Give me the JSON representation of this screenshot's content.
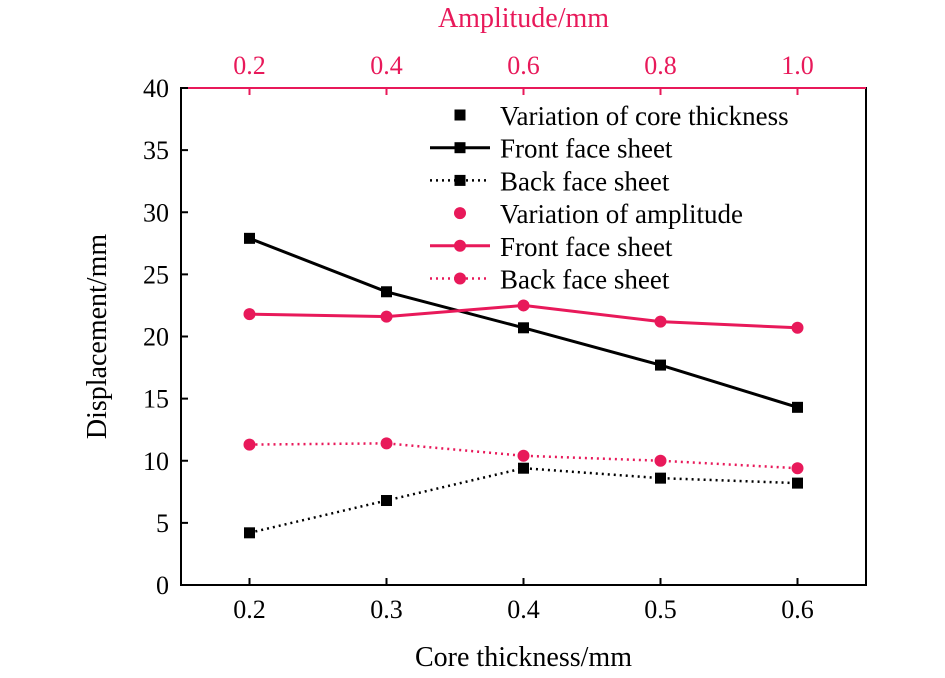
{
  "chart_data": {
    "type": "line",
    "xlabel": "Core thickness/mm",
    "x2label": "Amplitude/mm",
    "ylabel": "Displacement/mm",
    "x": [
      0.2,
      0.3,
      0.4,
      0.5,
      0.6
    ],
    "x_tick_labels": [
      "0.2",
      "0.3",
      "0.4",
      "0.5",
      "0.6"
    ],
    "x2": [
      0.2,
      0.4,
      0.6,
      0.8,
      1.0
    ],
    "x2_tick_labels": [
      "0.2",
      "0.4",
      "0.6",
      "0.8",
      "1.0"
    ],
    "xlim": [
      0.15,
      0.65
    ],
    "ylim": [
      0,
      40
    ],
    "y_ticks": [
      0,
      5,
      10,
      15,
      20,
      25,
      30,
      35,
      40
    ],
    "y_tick_labels": [
      "0",
      "5",
      "10",
      "15",
      "20",
      "25",
      "30",
      "35",
      "40"
    ],
    "grid": false,
    "legend_position": "top-right",
    "colors": {
      "black": "#000000",
      "red": "#e8195a"
    },
    "legend_groups": [
      {
        "title": "Variation of core thickness",
        "marker": "square",
        "color": "#000000"
      },
      {
        "title": "Variation of amplitude",
        "marker": "circle",
        "color": "#e8195a"
      }
    ],
    "series": [
      {
        "name": "Front face sheet",
        "group": "Variation of core thickness",
        "axis": "x",
        "color": "#000000",
        "marker": "square",
        "dash": "solid",
        "values": [
          27.9,
          23.6,
          20.7,
          17.7,
          14.3
        ]
      },
      {
        "name": "Back face sheet",
        "group": "Variation of core thickness",
        "axis": "x",
        "color": "#000000",
        "marker": "square",
        "dash": "dotted",
        "values": [
          4.2,
          6.8,
          9.4,
          8.6,
          8.2
        ]
      },
      {
        "name": "Front face sheet",
        "group": "Variation of amplitude",
        "axis": "x2",
        "color": "#e8195a",
        "marker": "circle",
        "dash": "solid",
        "values": [
          21.8,
          21.6,
          22.5,
          21.2,
          20.7
        ]
      },
      {
        "name": "Back face sheet",
        "group": "Variation of amplitude",
        "axis": "x2",
        "color": "#e8195a",
        "marker": "circle",
        "dash": "dotted",
        "values": [
          11.3,
          11.4,
          10.4,
          10.0,
          9.4
        ]
      }
    ]
  }
}
